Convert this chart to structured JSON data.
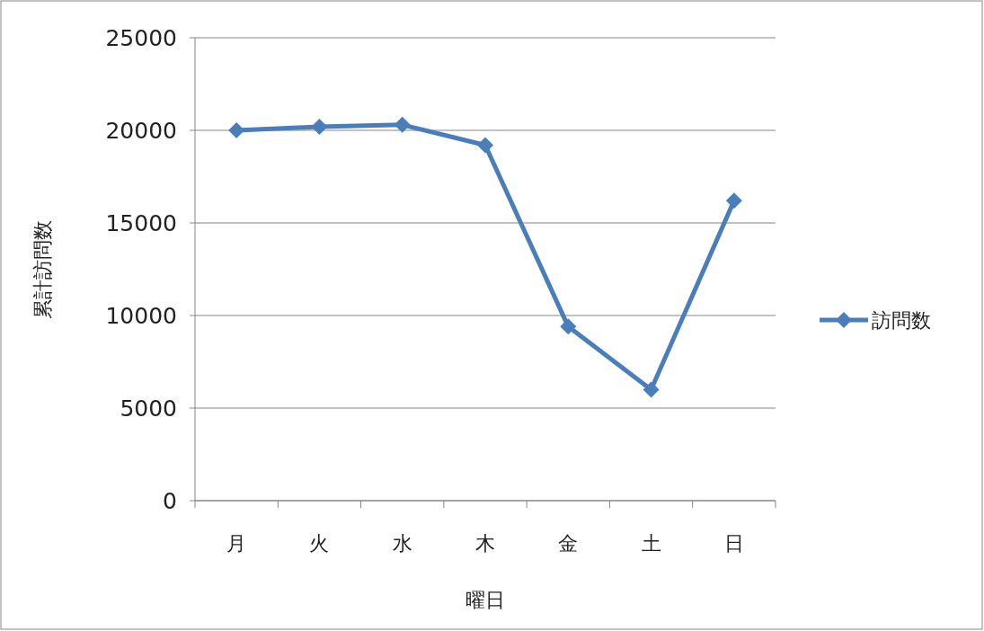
{
  "chart_data": {
    "type": "line",
    "xlabel": "曜日",
    "ylabel": "累計訪問数",
    "categories": [
      "月",
      "火",
      "水",
      "木",
      "金",
      "土",
      "日"
    ],
    "series": [
      {
        "name": "訪問数",
        "color": "#4a7ebb",
        "values": [
          20000,
          20200,
          20300,
          19200,
          9400,
          6000,
          16200
        ]
      }
    ],
    "ylim": [
      0,
      25000
    ],
    "yticks": [
      0,
      5000,
      10000,
      15000,
      20000,
      25000
    ],
    "grid": "y",
    "legend": "right",
    "marker": "diamond",
    "line_style": "solid"
  }
}
